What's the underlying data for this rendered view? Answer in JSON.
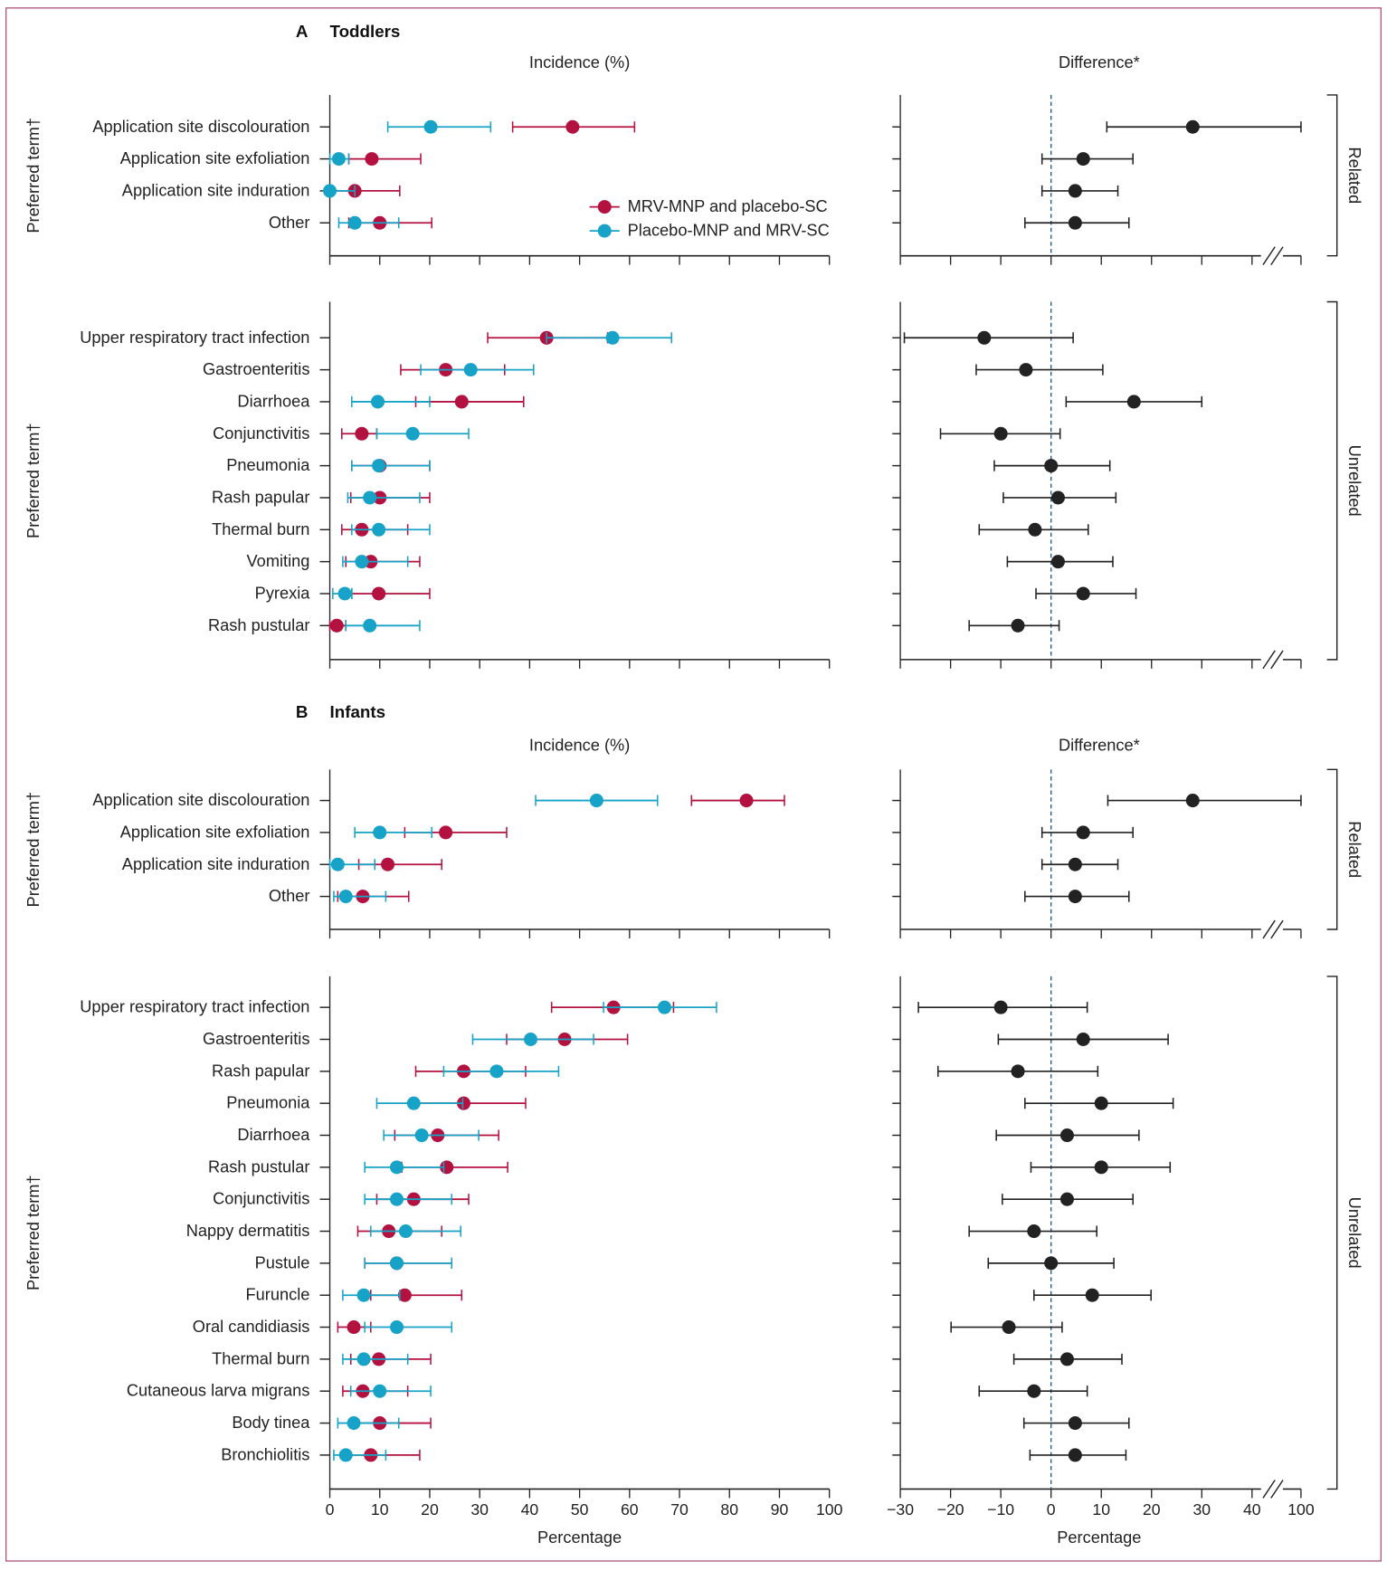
{
  "chart_data": {
    "type": "forest",
    "ylabel": "Preferred term†",
    "legend": [
      {
        "name": "MRV-MNP and placebo-SC",
        "color": "#b3113f"
      },
      {
        "name": "Placebo-MNP and MRV-SC",
        "color": "#17a3c7"
      }
    ],
    "difference_color": "#222222",
    "incidence_axis": {
      "title": "Incidence (%)",
      "xlabel": "Percentage",
      "xlim": [
        0,
        100
      ],
      "ticks": [
        "0",
        "10",
        "20",
        "30",
        "40",
        "50",
        "60",
        "70",
        "80",
        "90",
        "100"
      ]
    },
    "difference_axis": {
      "title": "Difference*",
      "xlabel": "Percentage",
      "xlim": [
        -30,
        100
      ],
      "ticks": [
        "−30",
        "−20",
        "−10",
        "0",
        "10",
        "20",
        "30",
        "40",
        "100"
      ],
      "axis_break": "between 40 and 100",
      "reference_line": 0
    },
    "value_format": "[estimate, lower CI, upper CI]",
    "panels": [
      {
        "letter": "A",
        "title": "Toddlers",
        "groups": [
          {
            "label": "Related",
            "rows": [
              {
                "term": "Application site discolouration",
                "mrv": [
                  48.6,
                  36.6,
                  61.0
                ],
                "placebo": [
                  20.2,
                  11.6,
                  32.2
                ],
                "diff": [
                  28.2,
                  11.1,
                  42.9
                ]
              },
              {
                "term": "Application site exfoliation",
                "mrv": [
                  8.4,
                  3.8,
                  18.2
                ],
                "placebo": [
                  1.8,
                  0,
                  3.8
                ],
                "diff": [
                  6.4,
                  -1.8,
                  16.3
                ]
              },
              {
                "term": "Application site induration",
                "mrv": [
                  5.0,
                  0,
                  14.0
                ],
                "placebo": [
                  0,
                  0,
                  5.0
                ],
                "diff": [
                  4.8,
                  -1.8,
                  13.3
                ]
              },
              {
                "term": "Other",
                "mrv": [
                  10.0,
                  3.8,
                  20.4
                ],
                "placebo": [
                  5.0,
                  1.8,
                  13.8
                ],
                "diff": [
                  4.8,
                  -5.2,
                  15.5
                ]
              }
            ]
          },
          {
            "label": "Unrelated",
            "rows": [
              {
                "term": "Upper respiratory tract infection",
                "mrv": [
                  43.4,
                  31.6,
                  55.6
                ],
                "placebo": [
                  56.6,
                  43.4,
                  68.4
                ],
                "diff": [
                  -13.3,
                  -29.2,
                  4.4
                ]
              },
              {
                "term": "Gastroenteritis",
                "mrv": [
                  23.2,
                  14.2,
                  35.0
                ],
                "placebo": [
                  28.2,
                  18.2,
                  40.8
                ],
                "diff": [
                  -5.0,
                  -14.9,
                  10.3
                ]
              },
              {
                "term": "Diarrhoea",
                "mrv": [
                  26.4,
                  17.2,
                  38.8
                ],
                "placebo": [
                  9.6,
                  4.4,
                  20.0
                ],
                "diff": [
                  16.5,
                  3.0,
                  30.0
                ]
              },
              {
                "term": "Conjunctivitis",
                "mrv": [
                  6.4,
                  2.4,
                  9.4
                ],
                "placebo": [
                  16.6,
                  9.4,
                  27.8
                ],
                "diff": [
                  -10.0,
                  -22.0,
                  1.8
                ]
              },
              {
                "term": "Pneumonia",
                "mrv": [
                  10.0,
                  4.4,
                  20.0
                ],
                "placebo": [
                  9.8,
                  4.4,
                  20.0
                ],
                "diff": [
                  0,
                  -11.3,
                  11.7
                ]
              },
              {
                "term": "Rash papular",
                "mrv": [
                  10.0,
                  4.2,
                  20.0
                ],
                "placebo": [
                  8.0,
                  3.6,
                  18.0
                ],
                "diff": [
                  1.4,
                  -9.5,
                  12.9
                ]
              },
              {
                "term": "Thermal burn",
                "mrv": [
                  6.4,
                  2.4,
                  15.6
                ],
                "placebo": [
                  9.8,
                  4.4,
                  20.0
                ],
                "diff": [
                  -3.2,
                  -14.3,
                  7.4
                ]
              },
              {
                "term": "Vomiting",
                "mrv": [
                  8.2,
                  3.2,
                  18.0
                ],
                "placebo": [
                  6.4,
                  2.6,
                  15.6
                ],
                "diff": [
                  1.4,
                  -8.7,
                  12.3
                ]
              },
              {
                "term": "Pyrexia",
                "mrv": [
                  9.8,
                  4.4,
                  20.0
                ],
                "placebo": [
                  3.0,
                  0.6,
                  4.4
                ],
                "diff": [
                  6.4,
                  -3.0,
                  16.9
                ]
              },
              {
                "term": "Rash pustular",
                "mrv": [
                  1.4,
                  0,
                  3.2
                ],
                "placebo": [
                  8.0,
                  3.2,
                  18.0
                ],
                "diff": [
                  -6.6,
                  -16.3,
                  1.6
                ]
              }
            ]
          }
        ]
      },
      {
        "letter": "B",
        "title": "Infants",
        "groups": [
          {
            "label": "Related",
            "rows": [
              {
                "term": "Application site discolouration",
                "mrv": [
                  83.4,
                  72.4,
                  91.0
                ],
                "placebo": [
                  53.4,
                  41.2,
                  65.6
                ],
                "diff": [
                  28.2,
                  11.3,
                  42.9
                ]
              },
              {
                "term": "Application site exfoliation",
                "mrv": [
                  23.2,
                  15.0,
                  35.4
                ],
                "placebo": [
                  10.0,
                  5.0,
                  20.4
                ],
                "diff": [
                  6.4,
                  -1.8,
                  16.3
                ]
              },
              {
                "term": "Application site induration",
                "mrv": [
                  11.6,
                  5.8,
                  22.4
                ],
                "placebo": [
                  1.6,
                  0,
                  9.0
                ],
                "diff": [
                  4.8,
                  -1.8,
                  13.3
                ]
              },
              {
                "term": "Other",
                "mrv": [
                  6.6,
                  1.6,
                  15.8
                ],
                "placebo": [
                  3.2,
                  0.8,
                  11.2
                ],
                "diff": [
                  4.8,
                  -5.2,
                  15.5
                ]
              }
            ]
          },
          {
            "label": "Unrelated",
            "rows": [
              {
                "term": "Upper respiratory tract infection",
                "mrv": [
                  56.8,
                  44.4,
                  68.8
                ],
                "placebo": [
                  67.0,
                  54.8,
                  77.4
                ],
                "diff": [
                  -10.0,
                  -26.4,
                  7.2
                ]
              },
              {
                "term": "Gastroenteritis",
                "mrv": [
                  47.0,
                  35.4,
                  59.6
                ],
                "placebo": [
                  40.2,
                  28.6,
                  52.8
                ],
                "diff": [
                  6.4,
                  -10.5,
                  23.3
                ]
              },
              {
                "term": "Rash papular",
                "mrv": [
                  26.8,
                  17.2,
                  39.2
                ],
                "placebo": [
                  33.4,
                  22.8,
                  45.8
                ],
                "diff": [
                  -6.6,
                  -22.5,
                  9.3
                ]
              },
              {
                "term": "Pneumonia",
                "mrv": [
                  26.8,
                  17.2,
                  39.2
                ],
                "placebo": [
                  16.8,
                  9.4,
                  26.6
                ],
                "diff": [
                  10.0,
                  -5.2,
                  24.3
                ]
              },
              {
                "term": "Diarrhoea",
                "mrv": [
                  21.6,
                  13.0,
                  33.8
                ],
                "placebo": [
                  18.4,
                  10.8,
                  29.8
                ],
                "diff": [
                  3.2,
                  -10.9,
                  17.5
                ]
              },
              {
                "term": "Rash pustular",
                "mrv": [
                  23.4,
                  14.4,
                  35.6
                ],
                "placebo": [
                  13.4,
                  7.0,
                  22.8
                ],
                "diff": [
                  10.0,
                  -4.0,
                  23.7
                ]
              },
              {
                "term": "Conjunctivitis",
                "mrv": [
                  16.8,
                  9.4,
                  27.8
                ],
                "placebo": [
                  13.4,
                  7.0,
                  24.4
                ],
                "diff": [
                  3.2,
                  -9.7,
                  16.3
                ]
              },
              {
                "term": "Nappy dermatitis",
                "mrv": [
                  11.8,
                  5.6,
                  22.4
                ],
                "placebo": [
                  15.2,
                  8.2,
                  26.2
                ],
                "diff": [
                  -3.4,
                  -16.3,
                  9.1
                ]
              },
              {
                "term": "Pustule",
                "mrv": [
                  13.4,
                  7.0,
                  24.4
                ],
                "placebo": [
                  13.4,
                  7.0,
                  24.4
                ],
                "diff": [
                  0,
                  -12.5,
                  12.5
                ]
              },
              {
                "term": "Furuncle",
                "mrv": [
                  15.0,
                  8.2,
                  26.4
                ],
                "placebo": [
                  6.8,
                  2.6,
                  14.0
                ],
                "diff": [
                  8.2,
                  -3.4,
                  19.9
                ]
              },
              {
                "term": "Oral candidiasis",
                "mrv": [
                  4.8,
                  1.6,
                  8.2
                ],
                "placebo": [
                  13.4,
                  7.0,
                  24.4
                ],
                "diff": [
                  -8.4,
                  -19.9,
                  2.2
                ]
              },
              {
                "term": "Thermal burn",
                "mrv": [
                  9.8,
                  4.2,
                  20.2
                ],
                "placebo": [
                  6.8,
                  2.6,
                  15.6
                ],
                "diff": [
                  3.2,
                  -7.4,
                  14.1
                ]
              },
              {
                "term": "Cutaneous larva migrans",
                "mrv": [
                  6.6,
                  2.6,
                  15.6
                ],
                "placebo": [
                  10.0,
                  4.2,
                  20.2
                ],
                "diff": [
                  -3.4,
                  -14.3,
                  7.2
                ]
              },
              {
                "term": "Body tinea",
                "mrv": [
                  10.0,
                  4.2,
                  20.2
                ],
                "placebo": [
                  4.8,
                  1.6,
                  13.8
                ],
                "diff": [
                  4.8,
                  -5.4,
                  15.5
                ]
              },
              {
                "term": "Bronchiolitis",
                "mrv": [
                  8.2,
                  3.2,
                  18.0
                ],
                "placebo": [
                  3.2,
                  0.8,
                  11.2
                ],
                "diff": [
                  4.8,
                  -4.2,
                  14.9
                ]
              }
            ]
          }
        ]
      }
    ]
  }
}
